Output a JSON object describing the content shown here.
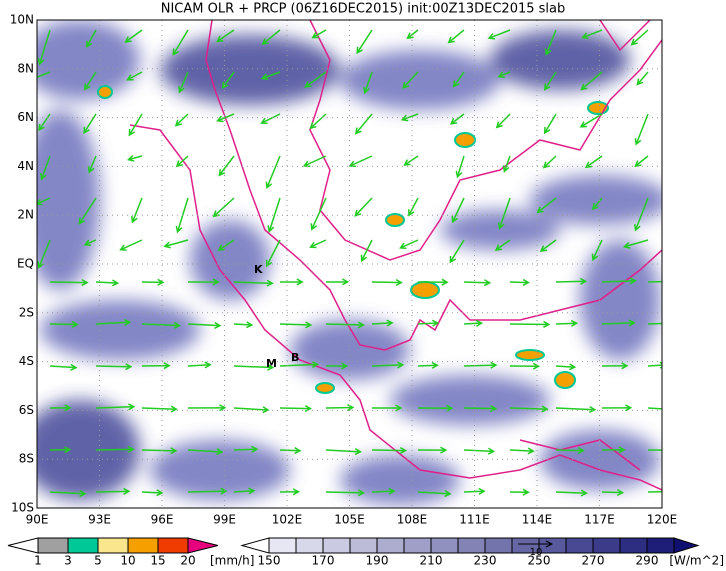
{
  "title": "NICAM OLR + PRCP (06Z16DEC2015) init:00Z13DEC2015 slab",
  "map": {
    "lat_labels": [
      "10N",
      "8N",
      "6N",
      "4N",
      "2N",
      "EQ",
      "2S",
      "4S",
      "6S",
      "8S",
      "10S"
    ],
    "lon_labels": [
      "90E",
      "93E",
      "96E",
      "99E",
      "102E",
      "105E",
      "108E",
      "111E",
      "114E",
      "117E",
      "120E"
    ],
    "places": [
      "K",
      "M",
      "B"
    ]
  },
  "precip_legend": {
    "levels": [
      "1",
      "3",
      "5",
      "10",
      "15",
      "20"
    ],
    "unit": "[mm/h]",
    "colors": [
      "#ffffff",
      "#a0a0a0",
      "#00c896",
      "#fae68c",
      "#f5a000",
      "#f03c00",
      "#e6007d"
    ]
  },
  "olr_legend": {
    "levels": [
      "150",
      "170",
      "190",
      "210",
      "230",
      "250",
      "270",
      "290"
    ],
    "unit": "[W/m^2]",
    "vector_ref": "10"
  }
}
